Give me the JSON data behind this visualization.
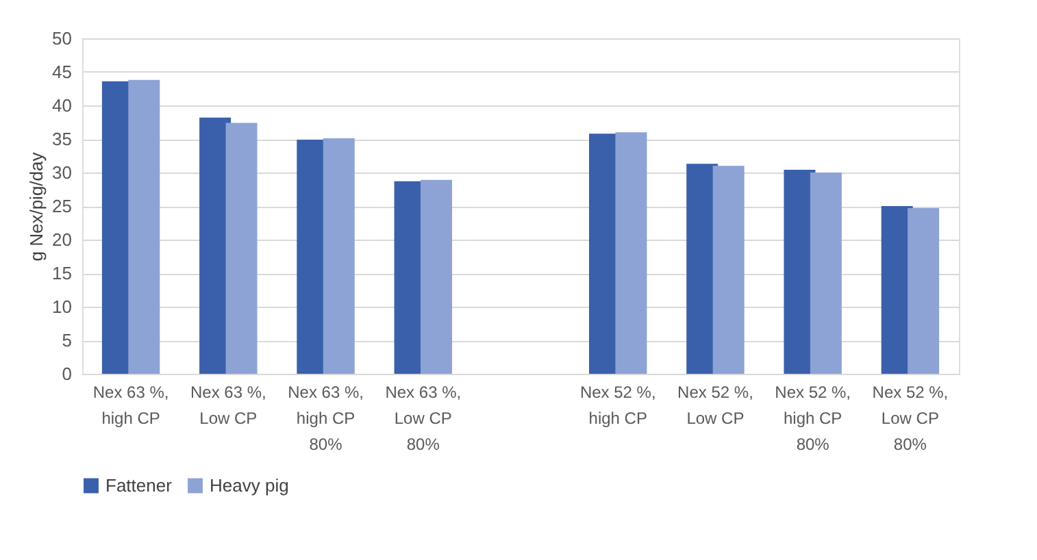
{
  "chart_data": {
    "type": "bar",
    "ylabel": "g Nex/pig/day",
    "categories": [
      "Nex 63 %,\nhigh CP",
      "Nex 63 %,\nLow CP",
      "Nex 63 %,\nhigh CP\n80%",
      "Nex 63 %,\nLow CP\n80%",
      null,
      "Nex 52 %,\nhigh CP",
      "Nex 52 %,\nLow CP",
      "Nex 52 %,\nhigh CP\n80%",
      "Nex 52 %,\nLow CP\n80%"
    ],
    "series": [
      {
        "name": "Fattener",
        "color": "#3a60ab",
        "values": [
          43.6,
          38.2,
          34.9,
          28.7,
          null,
          35.8,
          31.3,
          30.4,
          25.0
        ]
      },
      {
        "name": "Heavy pig",
        "color": "#8da3d5",
        "values": [
          43.8,
          37.4,
          35.1,
          28.9,
          null,
          36.0,
          31.0,
          30.0,
          24.7
        ]
      }
    ],
    "ylim": [
      0,
      50
    ],
    "yticks": [
      0,
      5,
      10,
      15,
      20,
      25,
      30,
      35,
      40,
      45,
      50
    ],
    "grid": "y",
    "legend": "bottom"
  }
}
